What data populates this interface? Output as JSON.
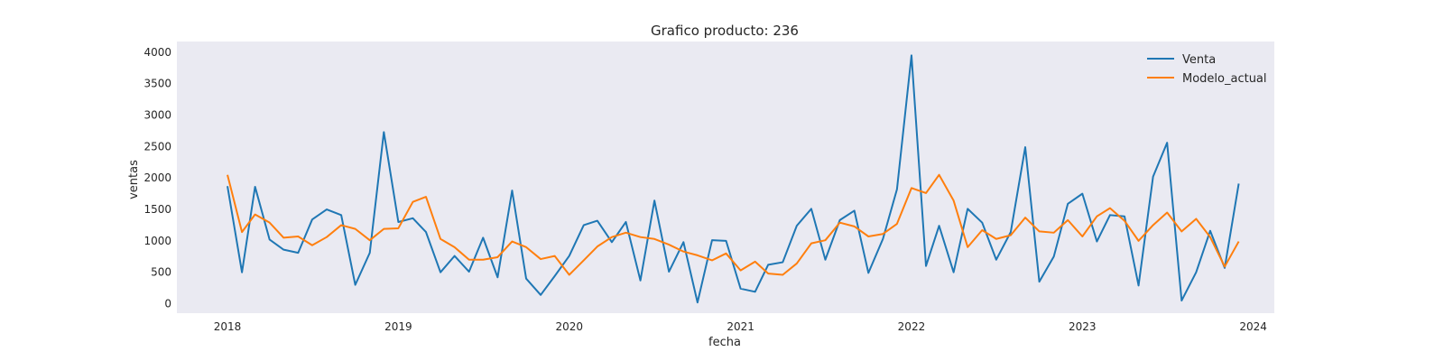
{
  "chart_data": {
    "type": "line",
    "title": "Grafico producto: 236",
    "xlabel": "fecha",
    "ylabel": "ventas",
    "xlim": [
      "2017-09-15",
      "2024-02-15"
    ],
    "ylim": [
      -150,
      4170
    ],
    "yticks": [
      0,
      500,
      1000,
      1500,
      2000,
      2500,
      3000,
      3500,
      4000
    ],
    "xticks": [
      "2018",
      "2019",
      "2020",
      "2021",
      "2022",
      "2023",
      "2024"
    ],
    "grid": false,
    "legend_position": "upper-right",
    "start_month": "2018-01",
    "series": [
      {
        "name": "Venta",
        "color": "#1f77b4",
        "values": [
          1870,
          500,
          1860,
          1020,
          860,
          810,
          1340,
          1500,
          1410,
          300,
          810,
          2730,
          1300,
          1360,
          1140,
          500,
          760,
          510,
          1050,
          420,
          1800,
          400,
          140,
          440,
          760,
          1250,
          1320,
          980,
          1300,
          370,
          1640,
          510,
          980,
          20,
          1010,
          1000,
          240,
          190,
          620,
          660,
          1240,
          1510,
          700,
          1330,
          1480,
          490,
          1030,
          1820,
          3950,
          600,
          1240,
          500,
          1510,
          1290,
          700,
          1140,
          2490,
          350,
          750,
          1590,
          1750,
          990,
          1410,
          1390,
          290,
          2020,
          2560,
          50,
          500,
          1160,
          570,
          1910
        ]
      },
      {
        "name": "Modelo_actual",
        "color": "#ff7f0e",
        "values": [
          2050,
          1140,
          1420,
          1290,
          1050,
          1070,
          930,
          1060,
          1250,
          1190,
          1010,
          1190,
          1200,
          1620,
          1700,
          1030,
          900,
          700,
          700,
          740,
          990,
          900,
          710,
          760,
          460,
          690,
          910,
          1060,
          1130,
          1060,
          1030,
          940,
          830,
          770,
          690,
          800,
          530,
          670,
          480,
          460,
          640,
          960,
          1010,
          1290,
          1230,
          1070,
          1110,
          1270,
          1840,
          1760,
          2050,
          1640,
          900,
          1170,
          1030,
          1090,
          1370,
          1150,
          1130,
          1330,
          1070,
          1390,
          1520,
          1320,
          1000,
          1250,
          1450,
          1150,
          1350,
          1060,
          590,
          990
        ]
      }
    ]
  }
}
